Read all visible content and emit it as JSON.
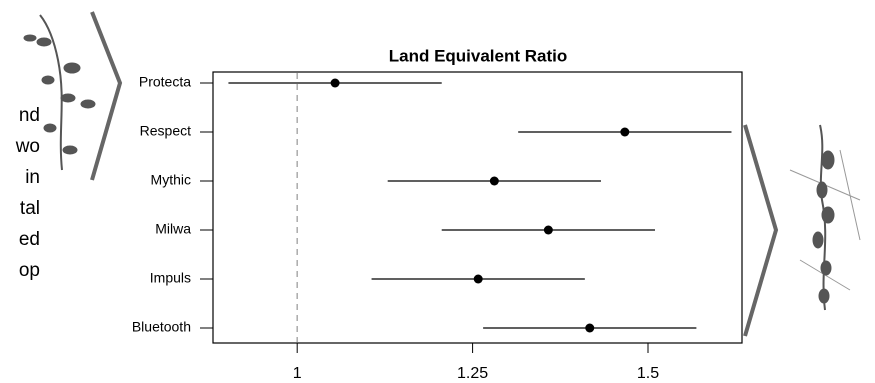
{
  "chart_data": {
    "type": "dot-errorbar",
    "title": "Land Equivalent Ratio",
    "categories": [
      "Protecta",
      "Respect",
      "Mythic",
      "Milwa",
      "Impuls",
      "Bluetooth"
    ],
    "values": [
      1.054,
      1.467,
      1.281,
      1.358,
      1.258,
      1.417
    ],
    "errors": [
      0.152,
      0.152,
      0.152,
      0.152,
      0.152,
      0.152
    ],
    "color": "#000000",
    "xlim": [
      0.88,
      1.634
    ],
    "xticks": [
      1,
      1.25,
      1.5
    ],
    "ref_line": 1,
    "side_text": [
      "nd",
      "wo",
      "in",
      "tal",
      "ed",
      "op"
    ]
  }
}
